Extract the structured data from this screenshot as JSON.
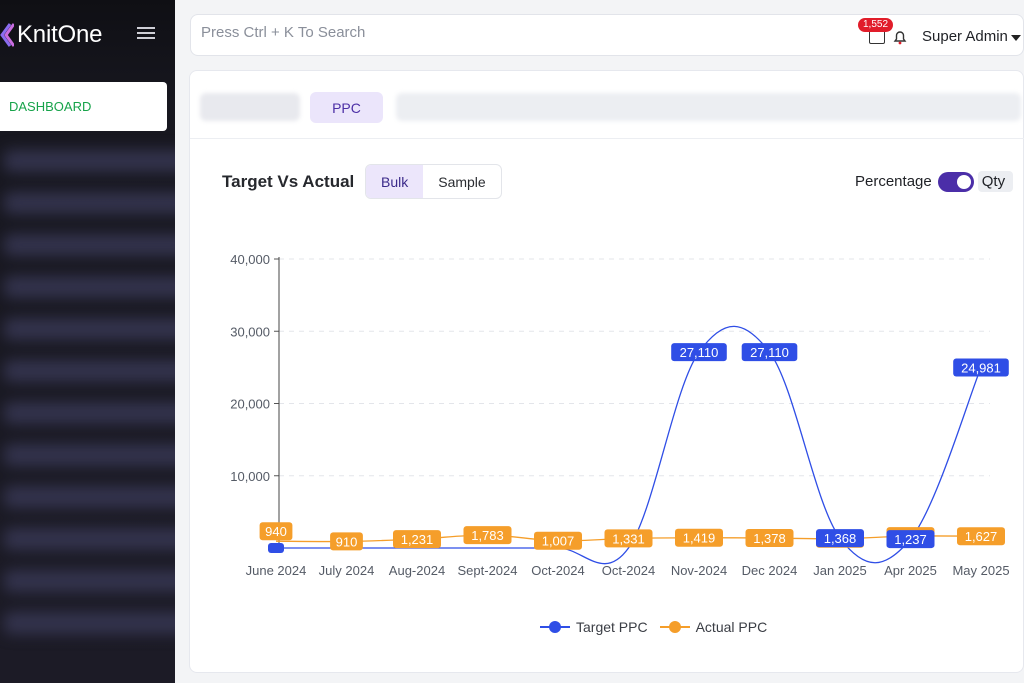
{
  "app": {
    "brand": "KnitOne",
    "nav_active_label": "DASHBOARD"
  },
  "topbar": {
    "search_placeholder": "Press Ctrl + K To Search",
    "notification_count": "1,552",
    "user_name": "Super Admin"
  },
  "tabs": {
    "active_label": "PPC"
  },
  "chart_panel": {
    "title": "Target Vs Actual",
    "segments": [
      "Bulk",
      "Sample"
    ],
    "active_segment": "Bulk",
    "toggle_left_label": "Percentage",
    "toggle_right_label": "Qty"
  },
  "colors": {
    "target": "#2f4ee6",
    "actual": "#f59e2a",
    "accent": "#4b2ea8",
    "active_nav": "#17a34a"
  },
  "chart_data": {
    "type": "line",
    "categories": [
      "June 2024",
      "July 2024",
      "Aug-2024",
      "Sept-2024",
      "Oct-2024",
      "Oct-2024",
      "Nov-2024",
      "Dec 2024",
      "Jan 2025",
      "Apr 2025",
      "May 2025"
    ],
    "series": [
      {
        "name": "Target PPC",
        "values": [
          0,
          0,
          0,
          0,
          0,
          0,
          27110,
          27110,
          1368,
          1237,
          24981
        ],
        "labels": [
          "",
          "",
          "",
          "",
          "",
          "",
          "27,110",
          "27,110",
          "1,368",
          "1,237",
          "24,981"
        ]
      },
      {
        "name": "Actual PPC",
        "values": [
          940,
          910,
          1231,
          1783,
          1007,
          1331,
          1419,
          1378,
          1279,
          1651,
          1627
        ],
        "labels": [
          "940",
          "910",
          "1,231",
          "1,783",
          "1,007",
          "1,331",
          "1,419",
          "1,378",
          "1,279",
          "1,651",
          "1,627"
        ]
      }
    ],
    "y_ticks": [
      "10,000",
      "20,000",
      "30,000",
      "40,000"
    ],
    "ylim": [
      0,
      40000
    ],
    "grid": true,
    "legend_position": "bottom"
  }
}
